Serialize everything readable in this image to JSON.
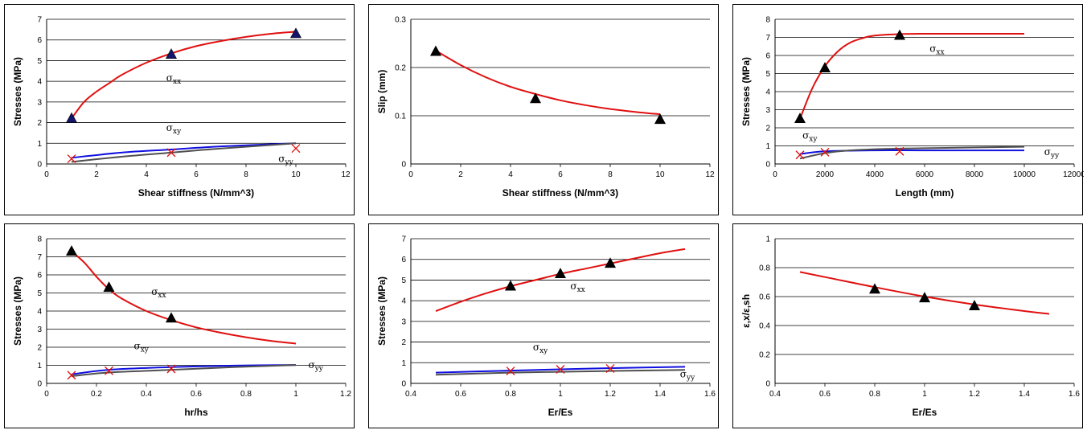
{
  "chart_data": [
    {
      "type": "line",
      "xlabel": "Shear stiffness (N/mm^3)",
      "ylabel": "Stresses (MPa)",
      "xlim": [
        0,
        12
      ],
      "ylim": [
        0,
        7
      ],
      "xticks": [
        "0",
        "2",
        "4",
        "6",
        "8",
        "10",
        "12"
      ],
      "yticks": [
        "0",
        "1",
        "2",
        "3",
        "4",
        "5",
        "6",
        "7"
      ],
      "series": [
        {
          "name": "σxx",
          "color": "#e01010",
          "kind": "line",
          "x": [
            1,
            1.5,
            2,
            2.5,
            3,
            4,
            5,
            6,
            7,
            8,
            9,
            10
          ],
          "y": [
            2.2,
            3.0,
            3.5,
            3.9,
            4.3,
            4.9,
            5.35,
            5.7,
            5.95,
            6.15,
            6.3,
            6.4
          ]
        },
        {
          "name": "σxy",
          "color": "#1010e0",
          "kind": "line",
          "x": [
            1,
            3,
            5,
            7,
            10
          ],
          "y": [
            0.3,
            0.55,
            0.7,
            0.85,
            1.0
          ]
        },
        {
          "name": "σyy",
          "color": "#505050",
          "kind": "line",
          "x": [
            1,
            3,
            5,
            7,
            10
          ],
          "y": [
            0.1,
            0.35,
            0.55,
            0.75,
            1.0
          ]
        },
        {
          "kind": "triangle",
          "color": "#15156a",
          "x": [
            1,
            5,
            10
          ],
          "y": [
            2.2,
            5.3,
            6.3
          ]
        },
        {
          "kind": "cross",
          "color": "#e01010",
          "x": [
            1,
            5,
            10
          ],
          "y": [
            0.25,
            0.55,
            0.75
          ]
        }
      ],
      "annotations": [
        {
          "base": "σ",
          "sub": "xx",
          "x": 4.8,
          "y": 4.0
        },
        {
          "base": "σ",
          "sub": "xy",
          "x": 4.8,
          "y": 1.6
        },
        {
          "base": "σ",
          "sub": "yy",
          "x": 9.3,
          "y": 0.1
        }
      ]
    },
    {
      "type": "line",
      "xlabel": "Shear stiffness (N/mm^3)",
      "ylabel": "Slip (mm)",
      "xlim": [
        0,
        12
      ],
      "ylim": [
        0,
        0.3
      ],
      "xticks": [
        "0",
        "2",
        "4",
        "6",
        "8",
        "10",
        "12"
      ],
      "yticks": [
        "0",
        "0.1",
        "0.2",
        "0.3"
      ],
      "series": [
        {
          "color": "#e01010",
          "kind": "line",
          "x": [
            1,
            2,
            3,
            4,
            5,
            6,
            7,
            8,
            9,
            10
          ],
          "y": [
            0.235,
            0.205,
            0.18,
            0.16,
            0.145,
            0.132,
            0.122,
            0.114,
            0.108,
            0.103
          ]
        },
        {
          "kind": "triangle",
          "color": "#000000",
          "x": [
            1,
            5,
            10
          ],
          "y": [
            0.233,
            0.135,
            0.092
          ]
        }
      ],
      "annotations": []
    },
    {
      "type": "line",
      "xlabel": "Length (mm)",
      "ylabel": "Stresses (MPa)",
      "xlim": [
        0,
        12000
      ],
      "ylim": [
        0,
        8
      ],
      "xticks": [
        "0",
        "2000",
        "4000",
        "6000",
        "8000",
        "10000",
        "12000"
      ],
      "yticks": [
        "0",
        "1",
        "2",
        "3",
        "4",
        "5",
        "6",
        "7",
        "8"
      ],
      "series": [
        {
          "name": "σxx",
          "color": "#e01010",
          "kind": "line",
          "x": [
            1000,
            1500,
            2000,
            2500,
            3000,
            3500,
            4000,
            5000,
            6000,
            8000,
            10000
          ],
          "y": [
            2.5,
            4.2,
            5.4,
            6.2,
            6.7,
            6.95,
            7.1,
            7.18,
            7.2,
            7.2,
            7.2
          ]
        },
        {
          "name": "σxy",
          "color": "#1010e0",
          "kind": "line",
          "x": [
            1000,
            2000,
            4000,
            6000,
            10000
          ],
          "y": [
            0.55,
            0.7,
            0.75,
            0.75,
            0.75
          ]
        },
        {
          "name": "σyy",
          "color": "#505050",
          "kind": "line",
          "x": [
            1000,
            2000,
            3000,
            5000,
            10000
          ],
          "y": [
            0.3,
            0.6,
            0.75,
            0.85,
            0.95
          ]
        },
        {
          "kind": "triangle",
          "color": "#000000",
          "x": [
            1000,
            2000,
            5000
          ],
          "y": [
            2.5,
            5.3,
            7.1
          ]
        },
        {
          "kind": "cross",
          "color": "#e01010",
          "x": [
            1000,
            2000,
            5000
          ],
          "y": [
            0.5,
            0.65,
            0.7
          ]
        }
      ],
      "annotations": [
        {
          "base": "σ",
          "sub": "xx",
          "x": 6200,
          "y": 6.2
        },
        {
          "base": "σ",
          "sub": "xy",
          "x": 1100,
          "y": 1.4
        },
        {
          "base": "σ",
          "sub": "yy",
          "x": 10800,
          "y": 0.5
        }
      ]
    },
    {
      "type": "line",
      "xlabel": "hr/hs",
      "ylabel": "Stresses (MPa)",
      "xlim": [
        0,
        1.2
      ],
      "ylim": [
        0,
        8
      ],
      "xticks": [
        "0",
        "0.2",
        "0.4",
        "0.6",
        "0.8",
        "1",
        "1.2"
      ],
      "yticks": [
        "0",
        "1",
        "2",
        "3",
        "4",
        "5",
        "6",
        "7",
        "8"
      ],
      "series": [
        {
          "name": "σxx",
          "color": "#e01010",
          "kind": "line",
          "x": [
            0.1,
            0.15,
            0.2,
            0.25,
            0.3,
            0.4,
            0.5,
            0.6,
            0.7,
            0.8,
            0.9,
            1.0
          ],
          "y": [
            7.3,
            6.7,
            5.9,
            5.2,
            4.7,
            4.0,
            3.5,
            3.1,
            2.8,
            2.55,
            2.35,
            2.2
          ]
        },
        {
          "name": "σxy",
          "color": "#1010e0",
          "kind": "line",
          "x": [
            0.1,
            0.25,
            0.5,
            0.75,
            1.0
          ],
          "y": [
            0.5,
            0.75,
            0.9,
            0.98,
            1.02
          ]
        },
        {
          "name": "σyy",
          "color": "#505050",
          "kind": "line",
          "x": [
            0.1,
            0.25,
            0.5,
            0.75,
            1.0
          ],
          "y": [
            0.4,
            0.6,
            0.75,
            0.9,
            1.02
          ]
        },
        {
          "kind": "triangle",
          "color": "#000000",
          "x": [
            0.1,
            0.25,
            0.5
          ],
          "y": [
            7.3,
            5.3,
            3.6
          ]
        },
        {
          "kind": "cross",
          "color": "#e01010",
          "x": [
            0.1,
            0.25,
            0.5
          ],
          "y": [
            0.45,
            0.7,
            0.8
          ]
        }
      ],
      "annotations": [
        {
          "base": "σ",
          "sub": "xx",
          "x": 0.42,
          "y": 4.9
        },
        {
          "base": "σ",
          "sub": "xy",
          "x": 0.35,
          "y": 1.9
        },
        {
          "base": "σ",
          "sub": "yy",
          "x": 1.05,
          "y": 0.85
        }
      ]
    },
    {
      "type": "line",
      "xlabel": "Er/Es",
      "ylabel": "Stresses (MPa)",
      "xlim": [
        0.4,
        1.6
      ],
      "ylim": [
        0,
        7
      ],
      "xticks": [
        "0.4",
        "0.6",
        "0.8",
        "1",
        "1.2",
        "1.4",
        "1.6"
      ],
      "yticks": [
        "0",
        "1",
        "2",
        "3",
        "4",
        "5",
        "6",
        "7"
      ],
      "series": [
        {
          "name": "σxx",
          "color": "#e01010",
          "kind": "line",
          "x": [
            0.5,
            0.6,
            0.7,
            0.8,
            0.9,
            1.0,
            1.1,
            1.2,
            1.3,
            1.4,
            1.5
          ],
          "y": [
            3.5,
            3.95,
            4.35,
            4.7,
            5.0,
            5.3,
            5.55,
            5.8,
            6.05,
            6.3,
            6.5
          ]
        },
        {
          "name": "σxy",
          "color": "#1010e0",
          "kind": "line",
          "x": [
            0.5,
            0.8,
            1.0,
            1.2,
            1.5
          ],
          "y": [
            0.52,
            0.62,
            0.68,
            0.74,
            0.8
          ]
        },
        {
          "name": "σyy",
          "color": "#505050",
          "kind": "line",
          "x": [
            0.5,
            0.8,
            1.0,
            1.2,
            1.5
          ],
          "y": [
            0.42,
            0.52,
            0.56,
            0.6,
            0.65
          ]
        },
        {
          "kind": "triangle",
          "color": "#000000",
          "x": [
            0.8,
            1.0,
            1.2
          ],
          "y": [
            4.7,
            5.3,
            5.8
          ]
        },
        {
          "kind": "cross",
          "color": "#e01010",
          "x": [
            0.8,
            1.0,
            1.2
          ],
          "y": [
            0.6,
            0.68,
            0.72
          ]
        }
      ],
      "annotations": [
        {
          "base": "σ",
          "sub": "xx",
          "x": 1.04,
          "y": 4.55
        },
        {
          "base": "σ",
          "sub": "xy",
          "x": 0.89,
          "y": 1.6
        },
        {
          "base": "σ",
          "sub": "yy",
          "x": 1.48,
          "y": 0.3
        }
      ]
    },
    {
      "type": "line",
      "xlabel": "Er/Es",
      "ylabel": "ε,x/ε,sh",
      "xlim": [
        0.4,
        1.6
      ],
      "ylim": [
        0,
        1
      ],
      "xticks": [
        "0.4",
        "0.6",
        "0.8",
        "1",
        "1.2",
        "1.4",
        "1.6"
      ],
      "yticks": [
        "0",
        "0.2",
        "0.4",
        "0.6",
        "0.8",
        "1"
      ],
      "series": [
        {
          "color": "#e01010",
          "kind": "line",
          "x": [
            0.5,
            0.6,
            0.8,
            1.0,
            1.2,
            1.4,
            1.5
          ],
          "y": [
            0.77,
            0.735,
            0.665,
            0.6,
            0.545,
            0.5,
            0.48
          ]
        },
        {
          "kind": "triangle",
          "color": "#000000",
          "x": [
            0.8,
            1.0,
            1.2
          ],
          "y": [
            0.65,
            0.59,
            0.535
          ]
        }
      ],
      "annotations": []
    }
  ]
}
